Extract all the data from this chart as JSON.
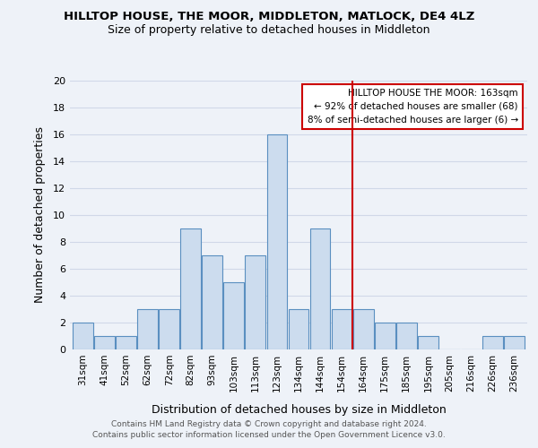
{
  "title": "HILLTOP HOUSE, THE MOOR, MIDDLETON, MATLOCK, DE4 4LZ",
  "subtitle": "Size of property relative to detached houses in Middleton",
  "xlabel": "Distribution of detached houses by size in Middleton",
  "ylabel": "Number of detached properties",
  "bin_labels": [
    "31sqm",
    "41sqm",
    "52sqm",
    "62sqm",
    "72sqm",
    "82sqm",
    "93sqm",
    "103sqm",
    "113sqm",
    "123sqm",
    "134sqm",
    "144sqm",
    "154sqm",
    "164sqm",
    "175sqm",
    "185sqm",
    "195sqm",
    "205sqm",
    "216sqm",
    "226sqm",
    "236sqm"
  ],
  "bar_heights": [
    2,
    1,
    1,
    3,
    3,
    9,
    7,
    5,
    7,
    16,
    3,
    9,
    3,
    3,
    2,
    2,
    1,
    0,
    0,
    1,
    1
  ],
  "bar_color": "#ccdcee",
  "bar_edge_color": "#5a8fc0",
  "vline_color": "#cc0000",
  "ylim": [
    0,
    20
  ],
  "yticks": [
    0,
    2,
    4,
    6,
    8,
    10,
    12,
    14,
    16,
    18,
    20
  ],
  "annotation_title": "HILLTOP HOUSE THE MOOR: 163sqm",
  "annotation_line1": "← 92% of detached houses are smaller (68)",
  "annotation_line2": "8% of semi-detached houses are larger (6) →",
  "annotation_box_color": "#ffffff",
  "annotation_box_edge": "#cc0000",
  "footer1": "Contains HM Land Registry data © Crown copyright and database right 2024.",
  "footer2": "Contains public sector information licensed under the Open Government Licence v3.0.",
  "grid_color": "#d0d8e8",
  "background_color": "#eef2f8"
}
